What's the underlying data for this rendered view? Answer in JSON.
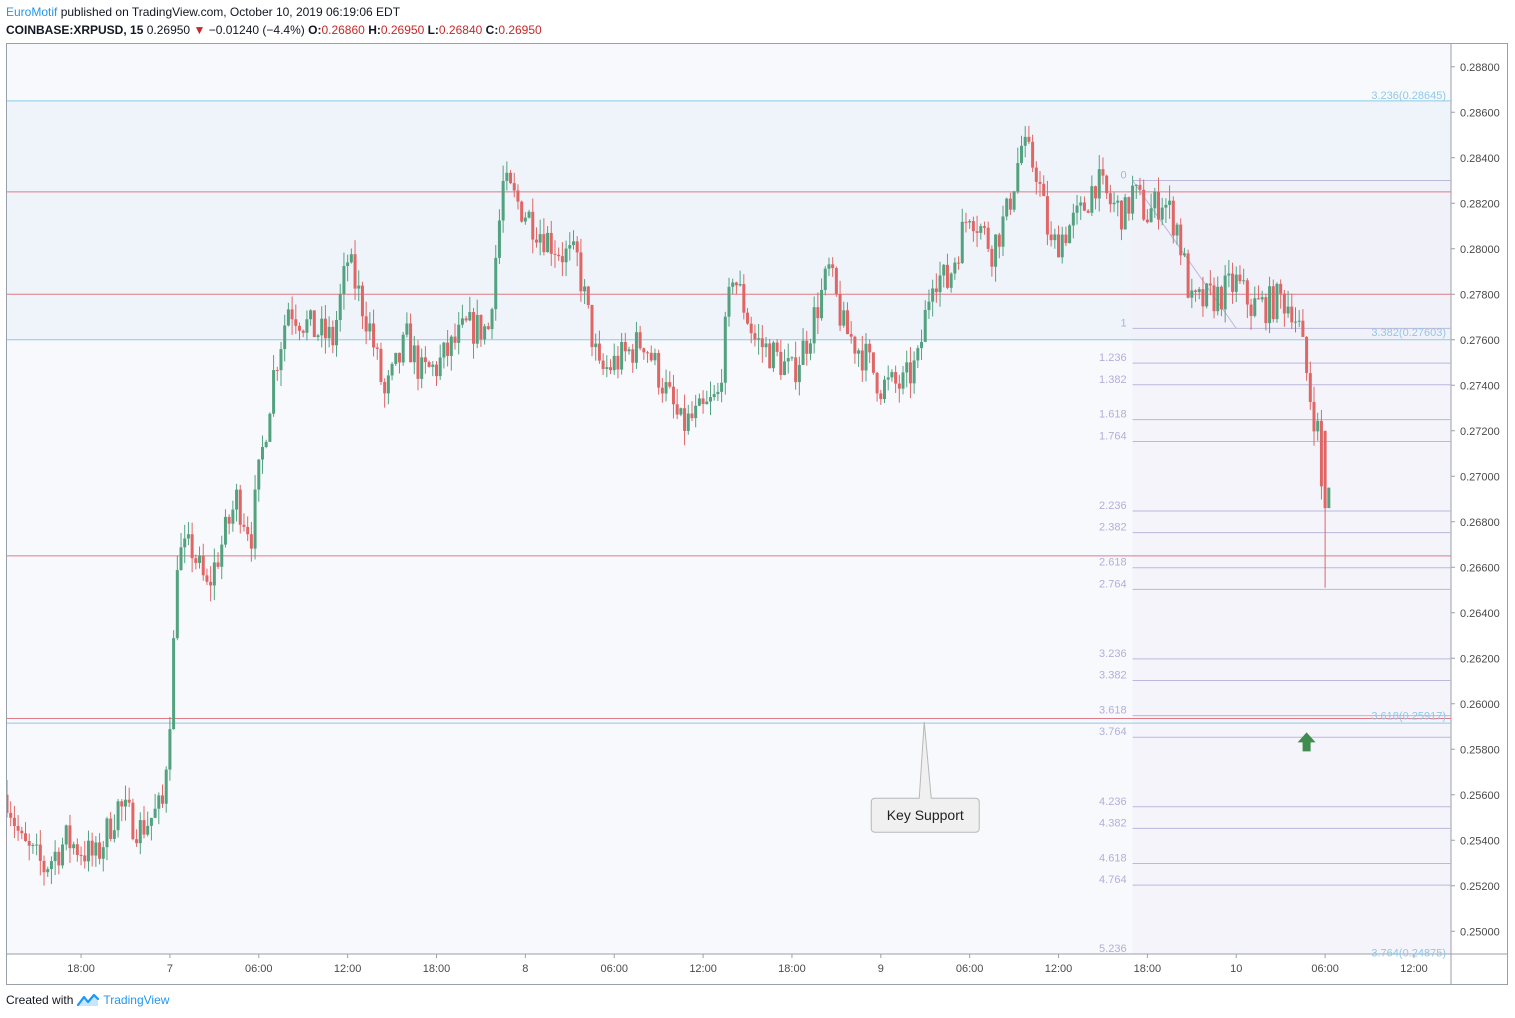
{
  "header": {
    "author": "EuroMotif",
    "published_text": "published on TradingView.com, October 10, 2019 06:19:06 EDT",
    "symbol": "COINBASE:XRPUSD, 15",
    "last": "0.26950",
    "arrow": "▼",
    "change": "−0.01240 (−4.4%)",
    "open_label": "O:",
    "open": "0.26860",
    "high_label": "H:",
    "high": "0.26950",
    "low_label": "L:",
    "low": "0.26840",
    "close_label": "C:",
    "close": "0.26950"
  },
  "footer": {
    "created_with": "Created with",
    "brand": "TradingView",
    "logo_icon": "tradingview-logo-icon"
  },
  "colors": {
    "up": "#53a27f",
    "down": "#e06666",
    "h_red": "#e07a85",
    "h_blue": "#8ccbe8",
    "fib": "#bbb7dd",
    "fib_text": "#b3aed8",
    "fib_blue_text": "#90c8e8",
    "callout_bg": "#f0f0f0",
    "callout_border": "#b8b8b8",
    "arrow_green": "#3f8c4e",
    "pane_bg": "#f8f9fd",
    "zone_bg": "#eff3fa"
  },
  "chart_data": {
    "type": "candlestick",
    "title": "",
    "y_axis": {
      "range": [
        0.249,
        0.289
      ],
      "ticks": [
        "0.28800",
        "0.28600",
        "0.28400",
        "0.28200",
        "0.28000",
        "0.27800",
        "0.27600",
        "0.27400",
        "0.27200",
        "0.27000",
        "0.26800",
        "0.26600",
        "0.26400",
        "0.26200",
        "0.26000",
        "0.25800",
        "0.25600",
        "0.25400",
        "0.25200",
        "0.25000"
      ]
    },
    "x_axis": {
      "range": [
        "2019-10-06T13:00",
        "2019-10-10T14:30"
      ],
      "ticks": [
        {
          "time": "2019-10-06T18:00",
          "label": "18:00"
        },
        {
          "time": "2019-10-07T00:00",
          "label": "7"
        },
        {
          "time": "2019-10-07T06:00",
          "label": "06:00"
        },
        {
          "time": "2019-10-07T12:00",
          "label": "12:00"
        },
        {
          "time": "2019-10-07T18:00",
          "label": "18:00"
        },
        {
          "time": "2019-10-08T00:00",
          "label": "8"
        },
        {
          "time": "2019-10-08T06:00",
          "label": "06:00"
        },
        {
          "time": "2019-10-08T12:00",
          "label": "12:00"
        },
        {
          "time": "2019-10-08T18:00",
          "label": "18:00"
        },
        {
          "time": "2019-10-09T00:00",
          "label": "9"
        },
        {
          "time": "2019-10-09T06:00",
          "label": "06:00"
        },
        {
          "time": "2019-10-09T12:00",
          "label": "12:00"
        },
        {
          "time": "2019-10-09T18:00",
          "label": "18:00"
        },
        {
          "time": "2019-10-10T00:00",
          "label": "10"
        },
        {
          "time": "2019-10-10T06:00",
          "label": "06:00"
        },
        {
          "time": "2019-10-10T12:00",
          "label": "12:00"
        }
      ]
    },
    "candle_interval_minutes": 15,
    "price_path": [
      [
        "2019-10-06T13:00",
        0.256
      ],
      [
        "2019-10-06T14:00",
        0.2538
      ],
      [
        "2019-10-06T15:30",
        0.2528
      ],
      [
        "2019-10-06T17:00",
        0.254
      ],
      [
        "2019-10-06T19:00",
        0.2532
      ],
      [
        "2019-10-06T20:30",
        0.2555
      ],
      [
        "2019-10-06T22:00",
        0.2545
      ],
      [
        "2019-10-06T23:30",
        0.2555
      ],
      [
        "2019-10-07T00:00",
        0.2596
      ],
      [
        "2019-10-07T00:30",
        0.2665
      ],
      [
        "2019-10-07T01:30",
        0.2668
      ],
      [
        "2019-10-07T02:30",
        0.265
      ],
      [
        "2019-10-07T03:30",
        0.267
      ],
      [
        "2019-10-07T04:30",
        0.269
      ],
      [
        "2019-10-07T05:30",
        0.2675
      ],
      [
        "2019-10-07T06:00",
        0.27
      ],
      [
        "2019-10-07T07:00",
        0.2745
      ],
      [
        "2019-10-07T08:00",
        0.2775
      ],
      [
        "2019-10-07T09:30",
        0.2765
      ],
      [
        "2019-10-07T11:00",
        0.276
      ],
      [
        "2019-10-07T12:00",
        0.2795
      ],
      [
        "2019-10-07T13:30",
        0.2765
      ],
      [
        "2019-10-07T14:30",
        0.2735
      ],
      [
        "2019-10-07T16:00",
        0.276
      ],
      [
        "2019-10-07T17:00",
        0.2745
      ],
      [
        "2019-10-07T18:00",
        0.2748
      ],
      [
        "2019-10-07T20:00",
        0.2765
      ],
      [
        "2019-10-07T21:30",
        0.2765
      ],
      [
        "2019-10-07T22:30",
        0.2828
      ],
      [
        "2019-10-07T23:30",
        0.282
      ],
      [
        "2019-10-08T01:00",
        0.2808
      ],
      [
        "2019-10-08T02:30",
        0.2798
      ],
      [
        "2019-10-08T03:30",
        0.2795
      ],
      [
        "2019-10-08T05:00",
        0.2745
      ],
      [
        "2019-10-08T06:30",
        0.2752
      ],
      [
        "2019-10-08T08:00",
        0.276
      ],
      [
        "2019-10-08T09:00",
        0.2745
      ],
      [
        "2019-10-08T10:30",
        0.2722
      ],
      [
        "2019-10-08T12:00",
        0.2728
      ],
      [
        "2019-10-08T13:00",
        0.2735
      ],
      [
        "2019-10-08T14:00",
        0.279
      ],
      [
        "2019-10-08T15:30",
        0.276
      ],
      [
        "2019-10-08T17:00",
        0.2752
      ],
      [
        "2019-10-08T18:00",
        0.2745
      ],
      [
        "2019-10-08T19:00",
        0.276
      ],
      [
        "2019-10-08T20:30",
        0.279
      ],
      [
        "2019-10-08T21:30",
        0.2765
      ],
      [
        "2019-10-08T23:00",
        0.2752
      ],
      [
        "2019-10-09T00:00",
        0.274
      ],
      [
        "2019-10-09T01:30",
        0.274
      ],
      [
        "2019-10-09T02:30",
        0.275
      ],
      [
        "2019-10-09T03:30",
        0.279
      ],
      [
        "2019-10-09T04:30",
        0.2785
      ],
      [
        "2019-10-09T06:00",
        0.2818
      ],
      [
        "2019-10-09T07:30",
        0.28
      ],
      [
        "2019-10-09T08:30",
        0.2815
      ],
      [
        "2019-10-09T09:30",
        0.2845
      ],
      [
        "2019-10-09T10:30",
        0.2835
      ],
      [
        "2019-10-09T11:30",
        0.28
      ],
      [
        "2019-10-09T12:30",
        0.2808
      ],
      [
        "2019-10-09T13:30",
        0.2815
      ],
      [
        "2019-10-09T14:30",
        0.283
      ],
      [
        "2019-10-09T15:30",
        0.282
      ],
      [
        "2019-10-09T16:30",
        0.2815
      ],
      [
        "2019-10-09T17:00",
        0.2825
      ],
      [
        "2019-10-09T18:00",
        0.2815
      ],
      [
        "2019-10-09T19:00",
        0.2822
      ],
      [
        "2019-10-09T20:00",
        0.281
      ],
      [
        "2019-10-09T21:00",
        0.2775
      ],
      [
        "2019-10-09T23:00",
        0.278
      ],
      [
        "2019-10-10T00:00",
        0.2785
      ],
      [
        "2019-10-10T01:00",
        0.2775
      ],
      [
        "2019-10-10T02:00",
        0.2775
      ],
      [
        "2019-10-10T03:00",
        0.2778
      ],
      [
        "2019-10-10T03:45",
        0.2775
      ],
      [
        "2019-10-10T04:15",
        0.2765
      ],
      [
        "2019-10-10T05:00",
        0.2735
      ],
      [
        "2019-10-10T05:30",
        0.272
      ],
      [
        "2019-10-10T05:45",
        0.2695
      ]
    ],
    "horizontal_lines": [
      {
        "price": 0.2865,
        "color": "blue"
      },
      {
        "price": 0.2825,
        "color": "red"
      },
      {
        "price": 0.278,
        "color": "red"
      },
      {
        "price": 0.276,
        "color": "blue"
      },
      {
        "price": 0.2665,
        "color": "red"
      },
      {
        "price": 0.25935,
        "color": "red"
      },
      {
        "price": 0.25915,
        "color": "blue"
      }
    ],
    "fib_extension": {
      "start": "2019-10-09T17:00",
      "end": "2019-10-10T14:30",
      "levels": [
        {
          "label": "0",
          "price": 0.283
        },
        {
          "label": "1",
          "price": 0.2765
        },
        {
          "label": "1.236",
          "price": 0.27497
        },
        {
          "label": "1.382",
          "price": 0.27402
        },
        {
          "label": "1.618",
          "price": 0.27249
        },
        {
          "label": "1.764",
          "price": 0.27153
        },
        {
          "label": "2.236",
          "price": 0.26847
        },
        {
          "label": "2.382",
          "price": 0.26752
        },
        {
          "label": "2.618",
          "price": 0.26598
        },
        {
          "label": "2.764",
          "price": 0.26503
        },
        {
          "label": "3.236",
          "price": 0.26197
        },
        {
          "label": "3.382",
          "price": 0.26102
        },
        {
          "label": "3.618",
          "price": 0.25948
        },
        {
          "label": "3.764",
          "price": 0.25853
        },
        {
          "label": "4.236",
          "price": 0.25547
        },
        {
          "label": "4.382",
          "price": 0.25452
        },
        {
          "label": "4.618",
          "price": 0.25298
        },
        {
          "label": "4.764",
          "price": 0.25203
        },
        {
          "label": "5.236",
          "price": 0.249
        }
      ],
      "trend_line": {
        "from": [
          "2019-10-09T17:00",
          0.283
        ],
        "to": [
          "2019-10-10T00:00",
          0.2765
        ]
      }
    },
    "right_labels": [
      {
        "text": "3.236(0.28645)",
        "price": 0.28645
      },
      {
        "text": "3.382(0.27603)",
        "price": 0.27603
      },
      {
        "text": "3.618(0.25917)",
        "price": 0.25917
      },
      {
        "text": "3.764(0.24875)",
        "price": 0.24875
      }
    ],
    "annotations": [
      {
        "type": "callout",
        "text": "Key Support",
        "time": "2019-10-09T03:00",
        "price": 0.2551,
        "pointer_price": 0.2592
      },
      {
        "type": "arrow_up",
        "time": "2019-10-10T04:45",
        "price": 0.2583
      }
    ]
  }
}
